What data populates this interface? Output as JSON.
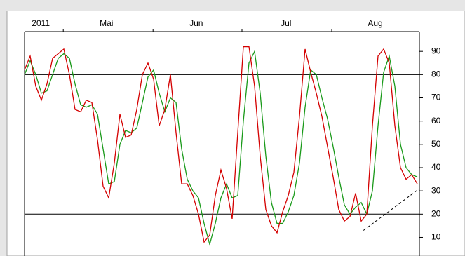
{
  "chart_data": {
    "type": "line",
    "xlim": [
      0,
      70
    ],
    "xticks": [
      6.9,
      22.9,
      38.75,
      54.75
    ],
    "x_labels": [
      {
        "value": 2.9,
        "label": "2011"
      },
      {
        "value": 14.6,
        "label": "Mai"
      },
      {
        "value": 30.6,
        "label": "Jun"
      },
      {
        "value": 46.6,
        "label": "Jul"
      },
      {
        "value": 62.5,
        "label": "Aug"
      }
    ],
    "ylim": [
      2,
      98.5
    ],
    "yticks": [
      10,
      20,
      30,
      40,
      50,
      60,
      70,
      80,
      90
    ],
    "levels": [
      80,
      20
    ],
    "trend_line": {
      "x": [
        60.4,
        70.4
      ],
      "y": [
        13,
        31
      ]
    },
    "series": [
      {
        "color": "#d40000",
        "values": [
          82,
          88,
          75,
          69,
          76,
          87,
          89,
          91,
          80,
          65,
          64,
          69,
          68,
          52,
          32,
          27,
          42,
          63,
          53,
          54,
          65,
          80,
          85,
          78,
          58,
          65,
          80,
          55,
          33,
          33,
          28,
          20,
          8,
          11,
          28,
          39,
          31,
          18,
          55,
          92,
          92,
          75,
          45,
          22,
          15,
          12,
          21,
          28,
          38,
          62,
          91,
          81,
          72,
          62,
          49,
          36,
          22,
          17,
          19,
          29,
          17,
          20,
          58,
          88,
          91,
          85,
          58,
          40,
          35,
          37,
          33
        ]
      },
      {
        "color": "#1a9a1a",
        "values": [
          80,
          86,
          80,
          72,
          73,
          80,
          87,
          89,
          87,
          76,
          67,
          66,
          67,
          63,
          48,
          33,
          34,
          50,
          56,
          55,
          57,
          68,
          79,
          82,
          72,
          64,
          70,
          68,
          48,
          35,
          30,
          27,
          16,
          7,
          16,
          27,
          33,
          27,
          28,
          60,
          85,
          90,
          72,
          45,
          25,
          16,
          16,
          21,
          28,
          42,
          66,
          82,
          80,
          70,
          61,
          49,
          36,
          24,
          20,
          23,
          25,
          20,
          30,
          58,
          81,
          88,
          75,
          50,
          40,
          37,
          36
        ]
      }
    ]
  }
}
